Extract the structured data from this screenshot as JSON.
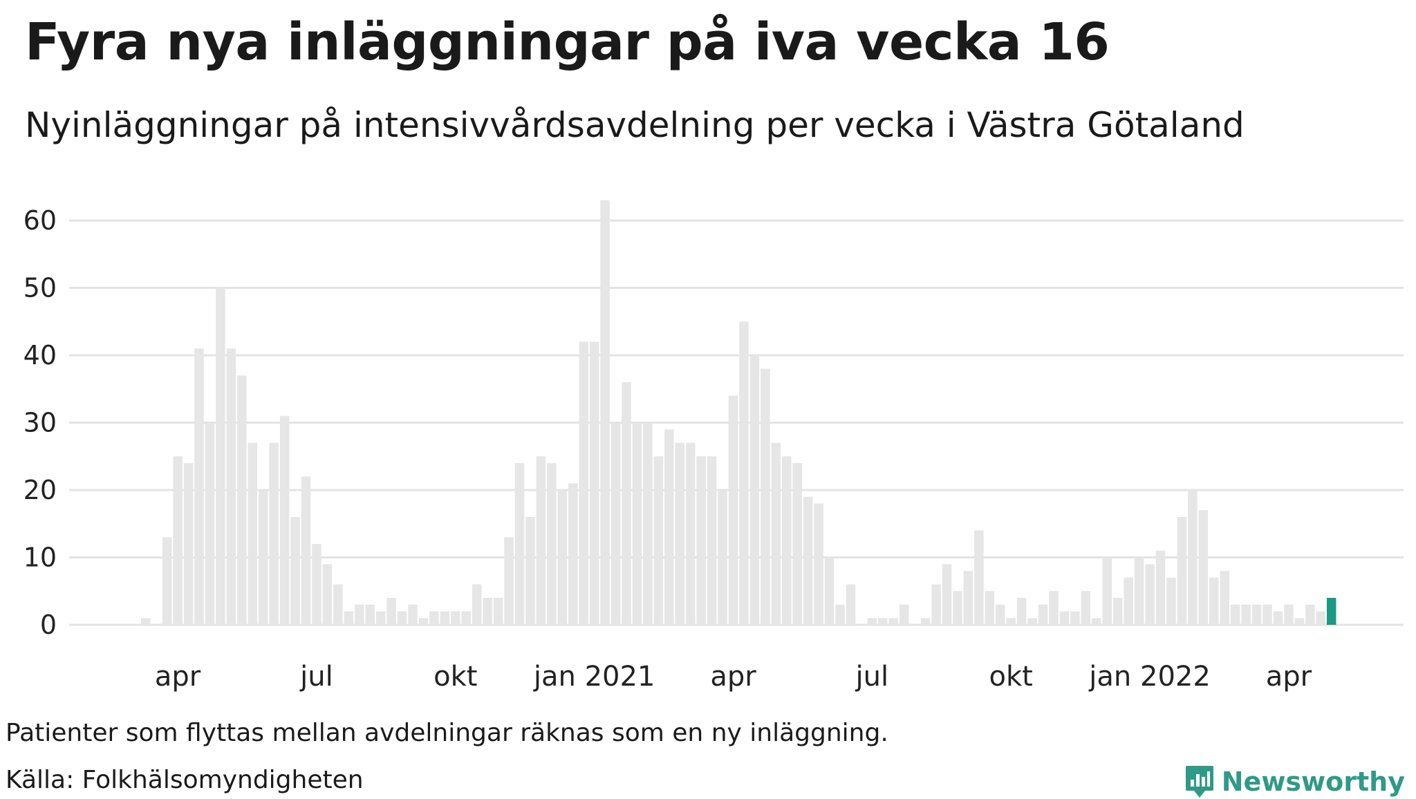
{
  "header": {
    "title": "Fyra nya inläggningar på iva vecka 16",
    "subtitle": "Nyinläggningar på intensivvårdsavdelning per vecka i Västra Götaland"
  },
  "footer": {
    "note": "Patienter som flyttas mellan avdelningar räknas som en ny inläggning.",
    "source": "Källa: Folkhälsomyndigheten",
    "brand": "Newsworthy"
  },
  "colors": {
    "bar": "#e6e6e6",
    "highlight": "#1a9a84",
    "grid": "#e3e3e3",
    "brand": "#2f9a86"
  },
  "chart_data": {
    "type": "bar",
    "ylim": [
      0,
      63
    ],
    "yticks": [
      0,
      10,
      20,
      30,
      40,
      50,
      60
    ],
    "grid": true,
    "x_labels": [
      {
        "label": "apr",
        "index": 3
      },
      {
        "label": "jul",
        "index": 16
      },
      {
        "label": "okt",
        "index": 29
      },
      {
        "label": "jan 2021",
        "index": 42
      },
      {
        "label": "apr",
        "index": 55
      },
      {
        "label": "jul",
        "index": 68
      },
      {
        "label": "okt",
        "index": 81
      },
      {
        "label": "jan 2022",
        "index": 94
      },
      {
        "label": "apr",
        "index": 107
      }
    ],
    "highlight_index": 111,
    "values": [
      1,
      0,
      13,
      25,
      24,
      41,
      30,
      50,
      41,
      37,
      27,
      20,
      27,
      31,
      16,
      22,
      12,
      9,
      6,
      2,
      3,
      3,
      2,
      4,
      2,
      3,
      1,
      2,
      2,
      2,
      2,
      6,
      4,
      4,
      13,
      24,
      16,
      25,
      24,
      20,
      21,
      42,
      42,
      63,
      30,
      36,
      30,
      30,
      25,
      29,
      27,
      27,
      25,
      25,
      20,
      34,
      45,
      40,
      38,
      27,
      25,
      24,
      19,
      18,
      10,
      3,
      6,
      0,
      1,
      1,
      1,
      3,
      0,
      1,
      6,
      9,
      5,
      8,
      14,
      5,
      3,
      1,
      4,
      1,
      3,
      5,
      2,
      2,
      5,
      1,
      10,
      4,
      7,
      10,
      9,
      11,
      7,
      16,
      20,
      17,
      7,
      8,
      3,
      3,
      3,
      3,
      2,
      3,
      1,
      3,
      2,
      4
    ]
  }
}
